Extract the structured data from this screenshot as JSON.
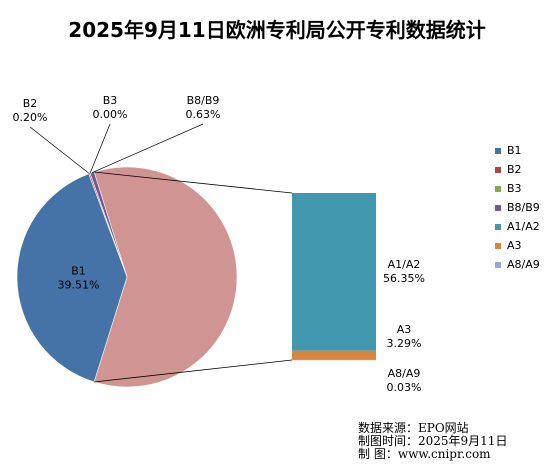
{
  "chart_data": {
    "type": "pie",
    "title": "2025年9月11日欧洲专利局公开专利数据统计",
    "slices": [
      {
        "name": "B1",
        "value": 39.51,
        "label": "39.51%",
        "color": "#4572a7"
      },
      {
        "name": "B2",
        "value": 0.2,
        "label": "0.20%",
        "color": "#aa4643"
      },
      {
        "name": "B3",
        "value": 0.0,
        "label": "0.00%",
        "color": "#89a54e"
      },
      {
        "name": "B8/B9",
        "value": 0.63,
        "label": "0.63%",
        "color": "#71588f"
      }
    ],
    "expanded_group_color": "#d09493",
    "expanded": [
      {
        "name": "A1/A2",
        "value": 56.35,
        "label": "56.35%",
        "color": "#4198af"
      },
      {
        "name": "A3",
        "value": 3.29,
        "label": "3.29%",
        "color": "#db843d"
      },
      {
        "name": "A8/A9",
        "value": 0.03,
        "label": "0.03%",
        "color": "#93a9cf"
      }
    ],
    "legend": [
      "B1",
      "B2",
      "B3",
      "B8/B9",
      "A1/A2",
      "A3",
      "A8/A9"
    ],
    "legend_position": "right"
  },
  "footer": [
    "数据来源：EPO网站",
    "制图时间：2025年9月11日",
    "制      图：www.cnipr.com"
  ]
}
